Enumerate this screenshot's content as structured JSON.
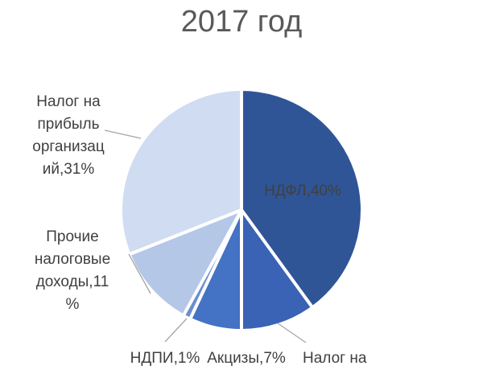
{
  "chart_data": {
    "type": "pie",
    "title": "2017 год",
    "slices": [
      {
        "label": "НДФЛ",
        "value": 40,
        "display": "НДФЛ,40%",
        "color": "#2F5597"
      },
      {
        "label": "Налог на …",
        "value": 10,
        "display": "Налог на",
        "color": "#3A62B5"
      },
      {
        "label": "Акцизы",
        "value": 7,
        "display": "Акцизы,7%",
        "color": "#4472C4"
      },
      {
        "label": "НДПИ",
        "value": 1,
        "display": "НДПИ,1%",
        "color": "#6A8ED0"
      },
      {
        "label": "Прочие налоговые доходы",
        "value": 11,
        "display": "Прочие налоговые доходы,11 %",
        "color": "#B4C7E7"
      },
      {
        "label": "Налог на прибыль организаций",
        "value": 31,
        "display": "Налог на прибыль организаций,31%",
        "color": "#D0DCF1"
      }
    ],
    "legend": "none",
    "labels": "data-labels-with-leader-lines"
  }
}
